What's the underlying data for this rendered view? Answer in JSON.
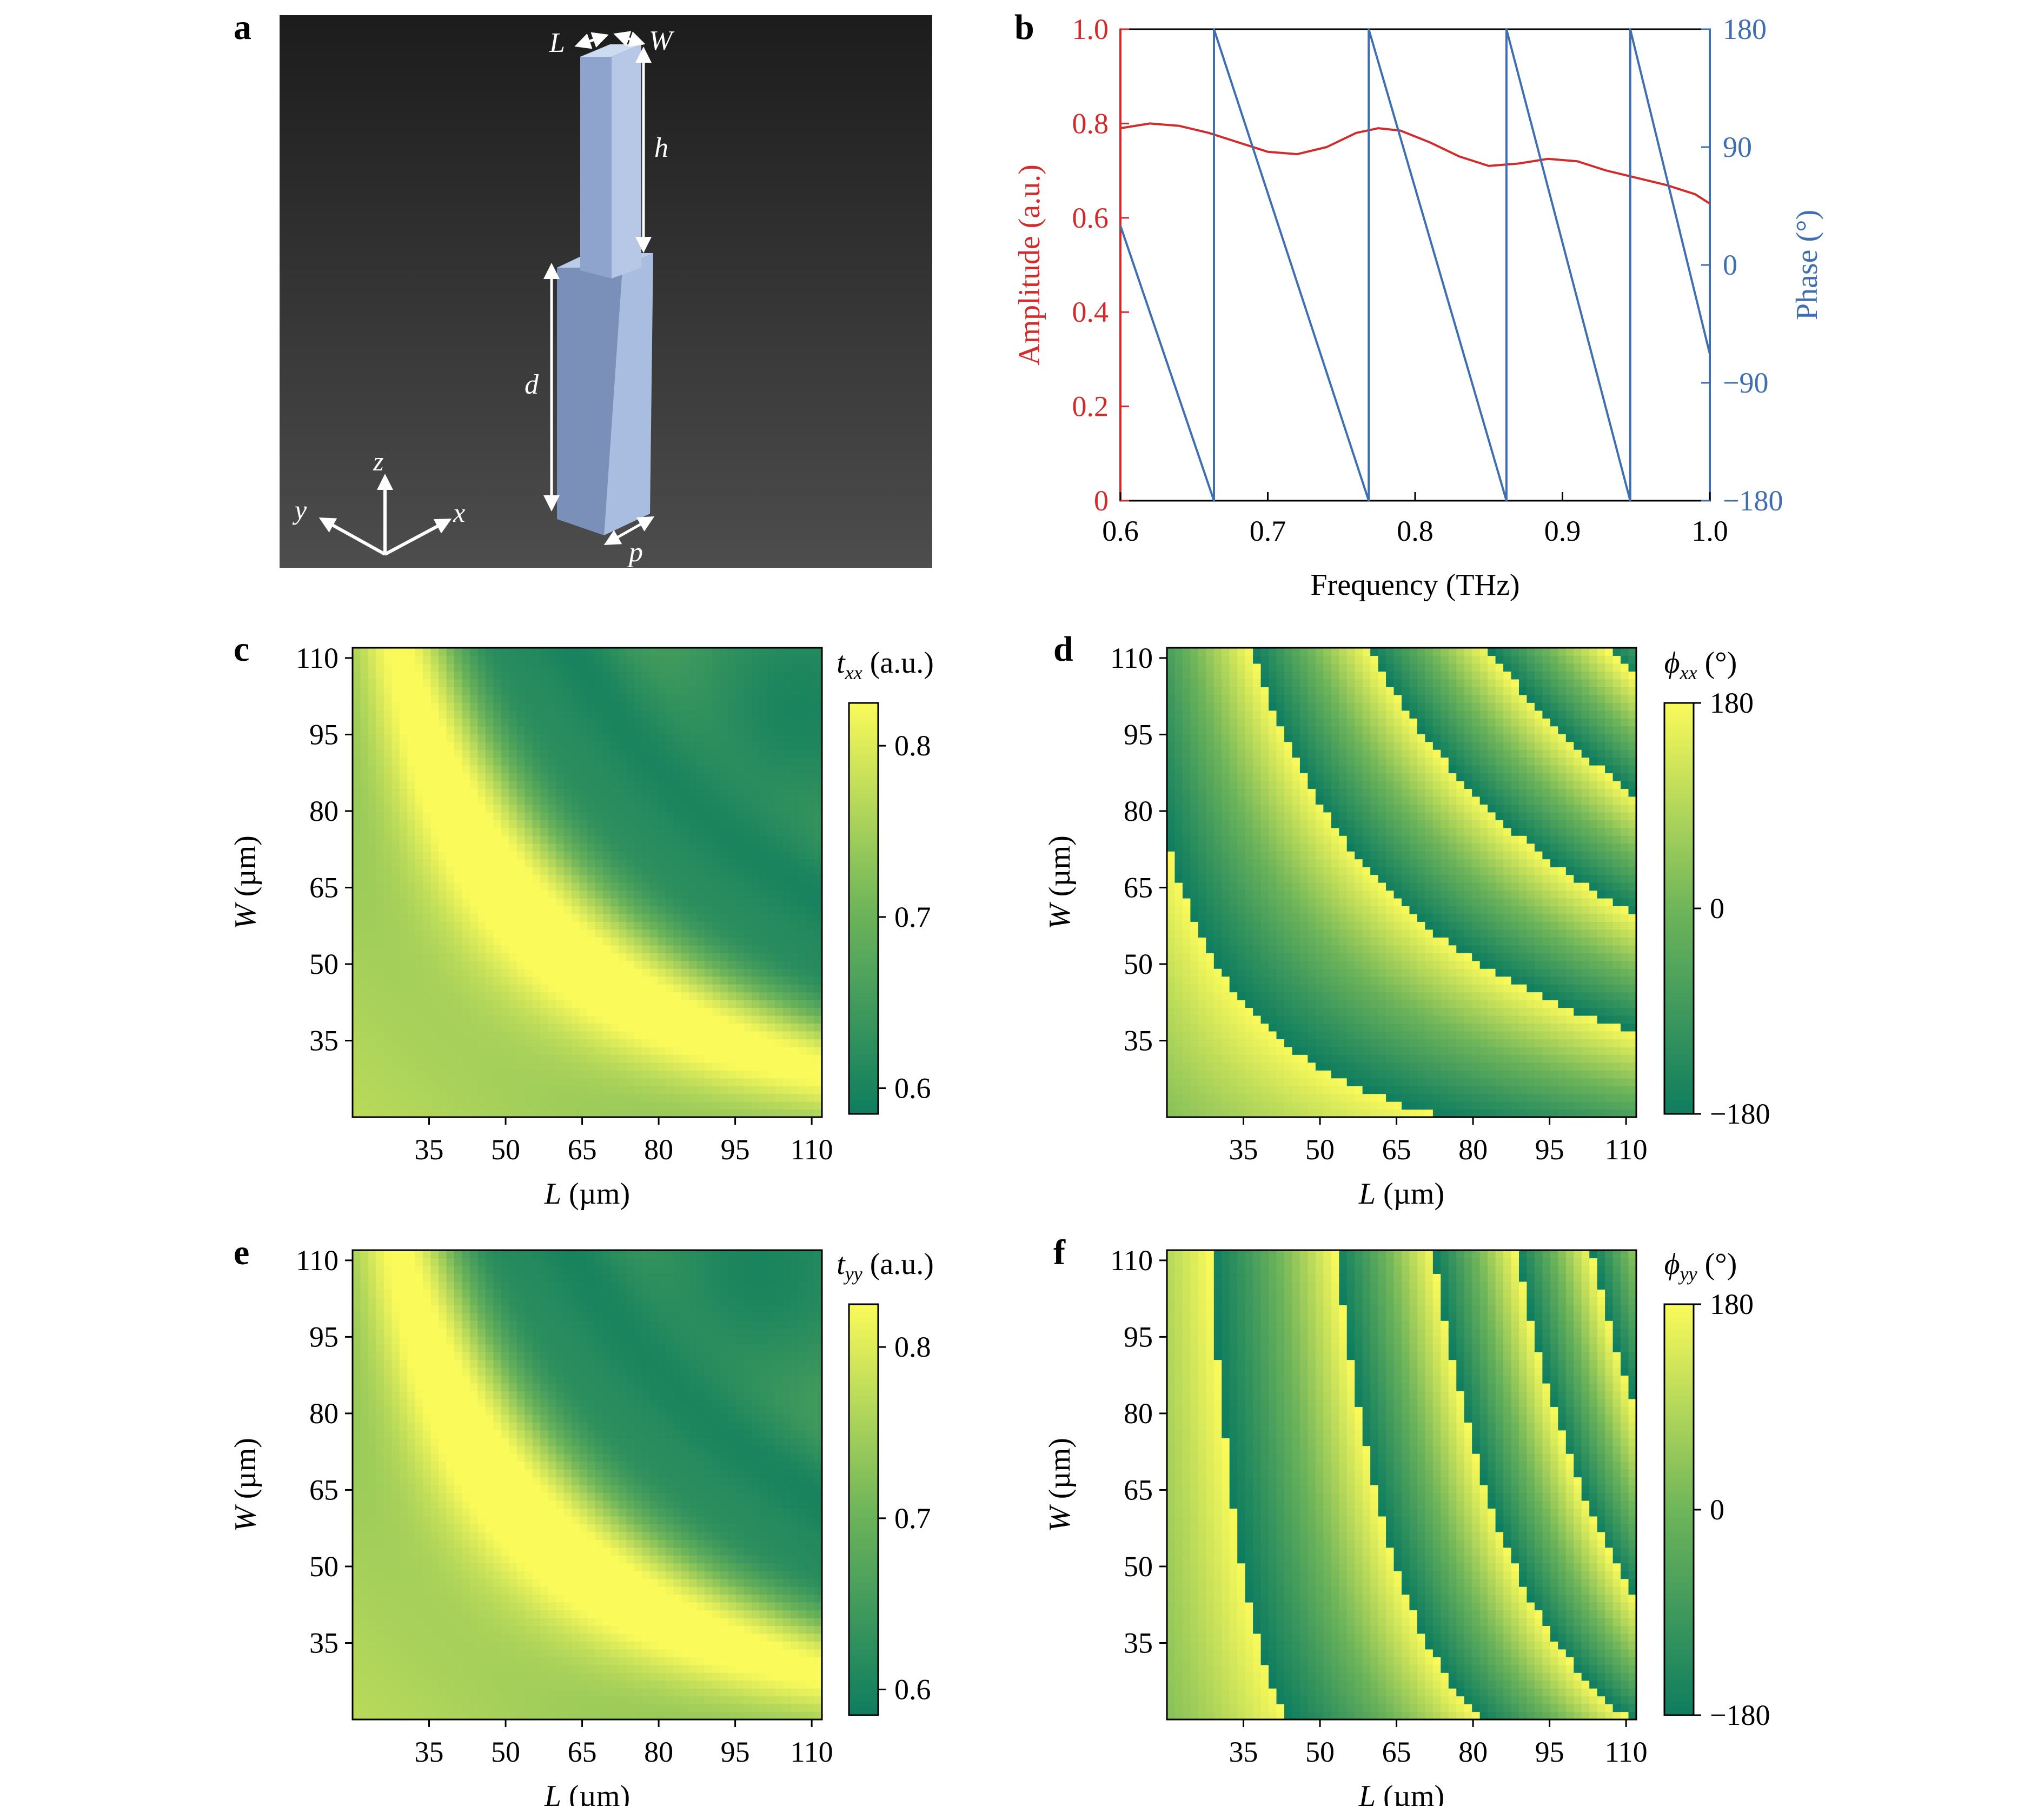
{
  "panel_labels": {
    "a": "a",
    "b": "b",
    "c": "c",
    "d": "d",
    "e": "e",
    "f": "f"
  },
  "schematic": {
    "labels": {
      "L": "L",
      "W": "W",
      "h": "h",
      "d": "d",
      "p": "p",
      "x": "x",
      "y": "y",
      "z": "z"
    },
    "colors": {
      "background_top": "#1c1c1c",
      "background_bottom": "#4d4d4d",
      "pillar_light": "#b9cce8",
      "pillar_mid": "#9fb4d6",
      "pillar_dark": "#7288b0"
    }
  },
  "colors": {
    "amplitude": "#d22b2b",
    "phase": "#3f6fb0",
    "cmap_low": "#0e7d5f",
    "cmap_mid": "#6fb55a",
    "cmap_high": "#fafa5a"
  },
  "chart_data": [
    {
      "panel": "b",
      "type": "line",
      "xlabel": "Frequency (THz)",
      "ylabel_left": "Amplitude (a.u.)",
      "ylabel_right": "Phase (°)",
      "xlim": [
        0.6,
        1.0
      ],
      "ylim_left": [
        0,
        1.0
      ],
      "ylim_right": [
        -180,
        180
      ],
      "xticks": [
        "0.6",
        "0.7",
        "0.8",
        "0.9",
        "1.0"
      ],
      "yticks_left": [
        "0",
        "0.2",
        "0.4",
        "0.6",
        "0.8",
        "1.0"
      ],
      "yticks_right": [
        "−180",
        "−90",
        "0",
        "90",
        "180"
      ],
      "series": [
        {
          "axis": "left",
          "color": "#d22b2b",
          "x": [
            0.6,
            0.62,
            0.64,
            0.66,
            0.68,
            0.7,
            0.72,
            0.74,
            0.76,
            0.775,
            0.79,
            0.81,
            0.83,
            0.85,
            0.87,
            0.89,
            0.91,
            0.93,
            0.95,
            0.97,
            0.99,
            1.0
          ],
          "y": [
            0.79,
            0.8,
            0.795,
            0.78,
            0.76,
            0.74,
            0.735,
            0.75,
            0.78,
            0.79,
            0.785,
            0.76,
            0.73,
            0.71,
            0.715,
            0.725,
            0.72,
            0.7,
            0.685,
            0.67,
            0.65,
            0.63
          ]
        },
        {
          "axis": "right",
          "color": "#3f6fb0",
          "x": [
            0.6,
            0.6635,
            0.6635,
            0.7685,
            0.7685,
            0.862,
            0.862,
            0.946,
            0.946,
            1.0
          ],
          "y": [
            30,
            -180,
            180,
            -180,
            180,
            -180,
            180,
            -180,
            180,
            -68
          ]
        }
      ]
    },
    {
      "panel": "c",
      "type": "heatmap",
      "quantity": "t_xx",
      "colorbar_label": {
        "sym": "t",
        "sub": "xx",
        "unit": " (a.u.)"
      },
      "xlabel": {
        "sym": "L",
        "unit": " (µm)"
      },
      "ylabel": {
        "sym": "W",
        "unit": " (µm)"
      },
      "xlim": [
        20,
        112
      ],
      "ylim": [
        20,
        112
      ],
      "xticks": [
        "35",
        "50",
        "65",
        "80",
        "95",
        "110"
      ],
      "yticks": [
        "35",
        "50",
        "65",
        "80",
        "95",
        "110"
      ],
      "cbar_range": [
        0.585,
        0.825
      ],
      "cbar_ticks": [
        "0.6",
        "0.7",
        "0.8"
      ],
      "grid_cells": 60,
      "features": {
        "ridge_yellow": {
          "c": 3300,
          "w": 10,
          "amp": 0.16
        },
        "ridge_green": {
          "c": 5200,
          "w": 9,
          "amp": -0.06
        },
        "ridge_green2": {
          "c": 7000,
          "w": 14,
          "amp": -0.09
        },
        "background_high": 0.77,
        "background_low": 0.66,
        "corner_dark_at": [
          108,
          100
        ],
        "corner_value": 0.6
      }
    },
    {
      "panel": "d",
      "type": "heatmap",
      "quantity": "phi_xx",
      "colorbar_label": {
        "sym": "ϕ",
        "sub": "xx",
        "unit": " (°)"
      },
      "xlabel": {
        "sym": "L",
        "unit": " (µm)"
      },
      "ylabel": {
        "sym": "W",
        "unit": " (µm)"
      },
      "xlim": [
        20,
        112
      ],
      "ylim": [
        20,
        112
      ],
      "xticks": [
        "35",
        "50",
        "65",
        "80",
        "95",
        "110"
      ],
      "yticks": [
        "35",
        "50",
        "65",
        "80",
        "95",
        "110"
      ],
      "cbar_range": [
        -180,
        180
      ],
      "cbar_ticks": [
        "180",
        "0",
        "−180"
      ],
      "grid_cells": 60,
      "phase_wraps": [
        {
          "p": 0.5,
          "q": 0.5,
          "c": 2350
        },
        {
          "p": 0.5,
          "q": 0.5,
          "c": 4950
        }
      ],
      "phase_scale": 20,
      "phase_offset": -60
    },
    {
      "panel": "e",
      "type": "heatmap",
      "quantity": "t_yy",
      "colorbar_label": {
        "sym": "t",
        "sub": "yy",
        "unit": " (a.u.)"
      },
      "xlabel": {
        "sym": "L",
        "unit": " (µm)"
      },
      "ylabel": {
        "sym": "W",
        "unit": " (µm)"
      },
      "xlim": [
        20,
        112
      ],
      "ylim": [
        20,
        112
      ],
      "xticks": [
        "35",
        "50",
        "65",
        "80",
        "95",
        "110"
      ],
      "yticks": [
        "35",
        "50",
        "65",
        "80",
        "95",
        "110"
      ],
      "cbar_range": [
        0.585,
        0.825
      ],
      "cbar_ticks": [
        "0.6",
        "0.7",
        "0.8"
      ],
      "grid_cells": 60,
      "features": {
        "ridge_yellow": {
          "c": 3300,
          "w": 10,
          "amp": 0.16
        },
        "ridge_green": {
          "c": 5200,
          "w": 9,
          "amp": -0.06
        },
        "ridge_green2": {
          "c": 7000,
          "w": 14,
          "amp": -0.09
        },
        "background_high": 0.77,
        "background_low": 0.66,
        "corner_dark_at": [
          100,
          108
        ],
        "corner_value": 0.6
      }
    },
    {
      "panel": "f",
      "type": "heatmap",
      "quantity": "phi_yy",
      "colorbar_label": {
        "sym": "ϕ",
        "sub": "yy",
        "unit": " (°)"
      },
      "xlabel": {
        "sym": "L",
        "unit": " (µm)"
      },
      "ylabel": {
        "sym": "W",
        "unit": " (µm)"
      },
      "xlim": [
        20,
        112
      ],
      "ylim": [
        20,
        112
      ],
      "xticks": [
        "35",
        "50",
        "65",
        "80",
        "95",
        "110"
      ],
      "yticks": [
        "35",
        "50",
        "65",
        "80",
        "95",
        "110"
      ],
      "cbar_range": [
        -180,
        180
      ],
      "cbar_ticks": [
        "180",
        "0",
        "−180"
      ],
      "grid_cells": 60,
      "phase_wraps": [
        {
          "p": 0.8,
          "q": 0.2,
          "c": 2200
        },
        {
          "p": 0.8,
          "q": 0.2,
          "c": 4600
        }
      ],
      "phase_scale": 21,
      "phase_offset": -60
    }
  ]
}
